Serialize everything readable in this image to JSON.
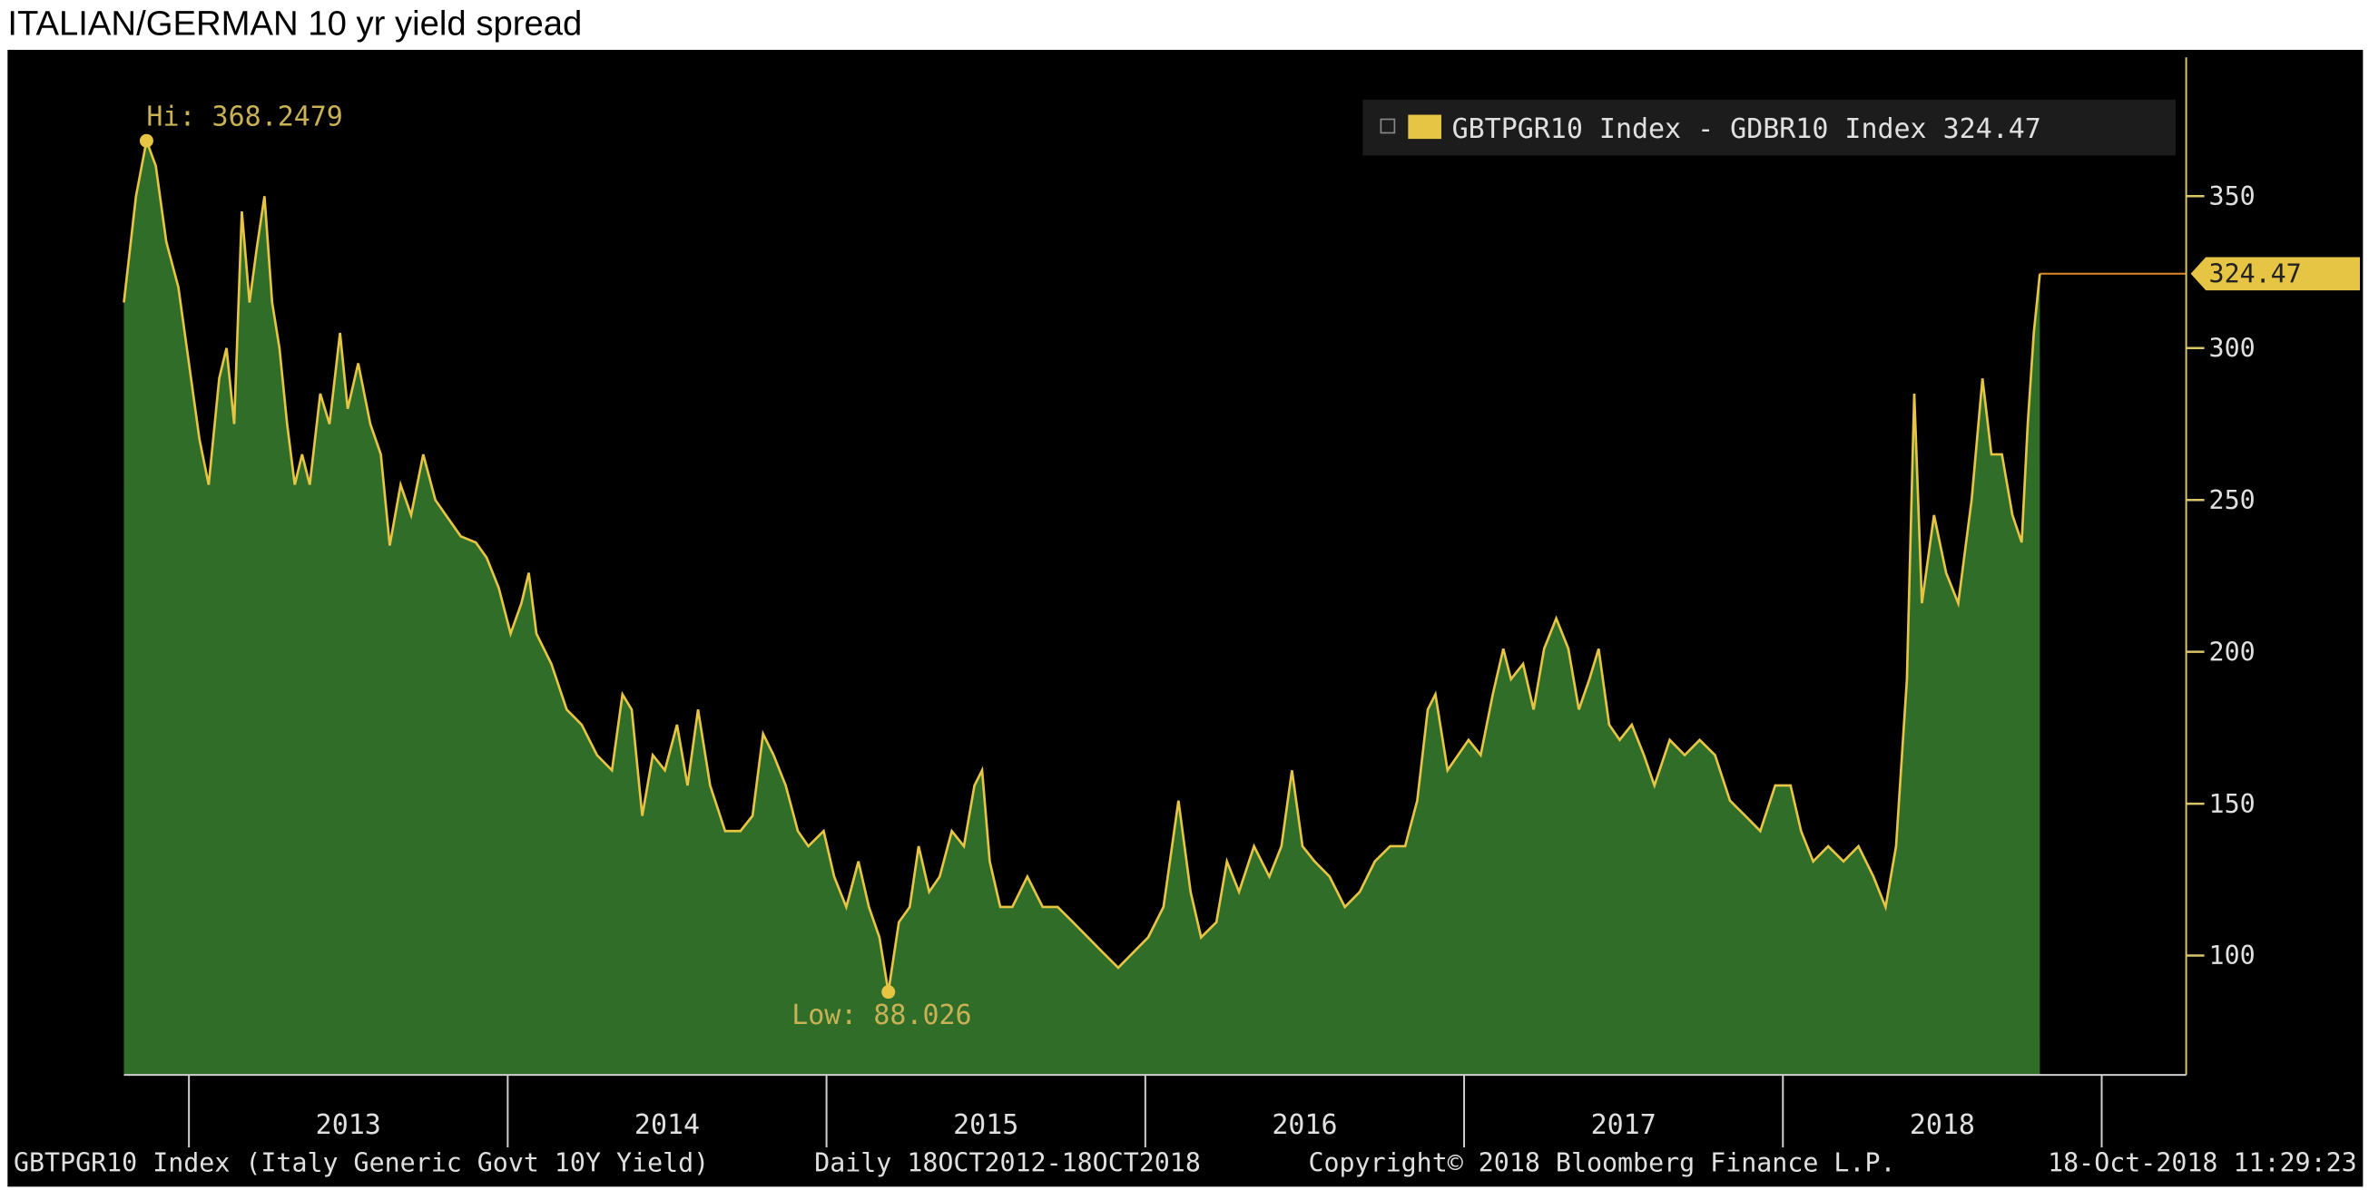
{
  "chart_data": {
    "type": "area",
    "title": "ITALIAN/GERMAN 10 yr yield spread",
    "footer": [
      "GBTPGR10 Index (Italy Generic Govt 10Y Yield)",
      "Daily 18OCT2012-18OCT2018",
      "Copyright© 2018 Bloomberg Finance L.P.",
      "18-Oct-2018 11:29:23"
    ],
    "x": [
      2012.796,
      2012.834,
      2012.867,
      2012.896,
      2012.929,
      2012.967,
      2013.0,
      2013.033,
      2013.062,
      2013.095,
      2013.118,
      2013.142,
      2013.166,
      2013.19,
      2013.213,
      2013.237,
      2013.261,
      2013.284,
      2013.308,
      2013.332,
      2013.355,
      2013.379,
      2013.412,
      2013.441,
      2013.474,
      2013.498,
      2013.531,
      2013.569,
      2013.602,
      2013.63,
      2013.664,
      2013.697,
      2013.735,
      2013.773,
      2013.806,
      2013.853,
      2013.9,
      2013.934,
      2013.972,
      2014.009,
      2014.043,
      2014.066,
      2014.09,
      2014.137,
      2014.185,
      2014.232,
      2014.28,
      2014.327,
      2014.36,
      2014.389,
      2014.422,
      2014.455,
      2014.493,
      2014.531,
      2014.564,
      2014.597,
      2014.635,
      2014.682,
      2014.73,
      2014.768,
      2014.801,
      2014.834,
      2014.872,
      2014.91,
      2014.943,
      2014.991,
      2015.024,
      2015.062,
      2015.1,
      2015.133,
      2015.166,
      2015.194,
      2015.227,
      2015.261,
      2015.289,
      2015.322,
      2015.355,
      2015.393,
      2015.431,
      2015.464,
      2015.488,
      2015.512,
      2015.545,
      2015.583,
      2015.63,
      2015.678,
      2015.725,
      2015.773,
      2015.82,
      2015.867,
      2015.915,
      2015.962,
      2016.009,
      2016.057,
      2016.104,
      2016.142,
      2016.175,
      2016.223,
      2016.256,
      2016.294,
      2016.341,
      2016.389,
      2016.427,
      2016.46,
      2016.493,
      2016.531,
      2016.578,
      2016.626,
      2016.673,
      2016.72,
      2016.768,
      2016.815,
      2016.853,
      2016.886,
      2016.91,
      2016.948,
      2016.981,
      2017.014,
      2017.052,
      2017.09,
      2017.123,
      2017.147,
      2017.185,
      2017.218,
      2017.251,
      2017.289,
      2017.327,
      2017.36,
      2017.393,
      2017.422,
      2017.455,
      2017.488,
      2017.526,
      2017.564,
      2017.597,
      2017.645,
      2017.692,
      2017.739,
      2017.787,
      2017.834,
      2017.882,
      2017.929,
      2017.976,
      2018.024,
      2018.057,
      2018.095,
      2018.142,
      2018.19,
      2018.237,
      2018.284,
      2018.322,
      2018.355,
      2018.389,
      2018.412,
      2018.436,
      2018.474,
      2018.512,
      2018.55,
      2018.592,
      2018.626,
      2018.654,
      2018.687,
      2018.72,
      2018.749,
      2018.768,
      2018.787,
      2018.806
    ],
    "series": [
      {
        "name": "GBTPGR10 Index - GDBR10 Index",
        "color": "#e6c444",
        "fill": "#306d28",
        "values": [
          315,
          350,
          368.2479,
          360,
          335,
          320,
          295,
          270,
          255,
          290,
          300,
          275,
          345,
          315,
          333,
          350,
          315,
          300,
          275,
          255,
          265,
          255,
          285,
          275,
          305,
          280,
          295,
          275,
          265,
          235,
          255,
          245,
          265,
          250,
          245,
          238,
          236,
          231,
          221,
          206,
          216,
          226,
          206,
          196,
          181,
          176,
          166,
          161,
          186,
          181,
          146,
          166,
          161,
          176,
          156,
          181,
          156,
          141,
          141,
          146,
          173,
          166,
          156,
          141,
          136,
          141,
          126,
          116,
          131,
          116,
          106,
          88.026,
          111,
          116,
          136,
          121,
          126,
          141,
          136,
          156,
          161,
          131,
          116,
          116,
          126,
          116,
          116,
          111,
          106,
          101,
          96,
          101,
          106,
          116,
          151,
          121,
          106,
          111,
          131,
          121,
          136,
          126,
          136,
          161,
          136,
          131,
          126,
          116,
          121,
          131,
          136,
          136,
          151,
          181,
          186,
          161,
          166,
          171,
          166,
          186,
          201,
          191,
          196,
          181,
          201,
          211,
          201,
          181,
          191,
          201,
          176,
          171,
          176,
          166,
          156,
          171,
          166,
          171,
          166,
          151,
          146,
          141,
          156,
          156,
          141,
          131,
          136,
          131,
          136,
          126,
          116,
          136,
          191,
          285,
          216,
          245,
          226,
          216,
          250,
          290,
          265,
          265,
          245,
          236,
          275,
          305,
          324.47
        ]
      }
    ],
    "annotations": [
      {
        "text": "Hi: 368.2479",
        "x": 2012.867,
        "y": 368.2479
      },
      {
        "text": "Low: 88.026",
        "x": 2015.194,
        "y": 88.026
      }
    ],
    "xlim": [
      2012.796,
      2019.265
    ],
    "xticks": [
      {
        "value": 2013.5,
        "label": "2013"
      },
      {
        "value": 2014.5,
        "label": "2014"
      },
      {
        "value": 2015.5,
        "label": "2015"
      },
      {
        "value": 2016.5,
        "label": "2016"
      },
      {
        "value": 2017.5,
        "label": "2017"
      },
      {
        "value": 2018.5,
        "label": "2018"
      }
    ],
    "x_separators": [
      2013,
      2014,
      2015,
      2016,
      2017,
      2018,
      2019
    ],
    "ylim": [
      60.7,
      395.7
    ],
    "yticks": [
      100,
      150,
      200,
      250,
      300,
      350
    ],
    "y_axis_side": "right",
    "legend": "top-right"
  }
}
